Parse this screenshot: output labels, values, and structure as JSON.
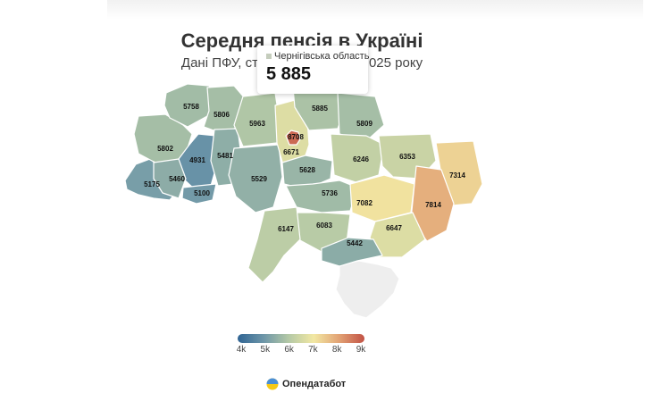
{
  "header": {
    "title": "Середня пенсія в Україні",
    "subtitle": "Дані ПФУ, ст",
    "subtitle_tail": "025 року"
  },
  "tooltip": {
    "region": "Чернігівська область",
    "value": "5 885"
  },
  "colors": {
    "scale": [
      "#2f6493",
      "#6c95a8",
      "#b3c8a6",
      "#f2e8a3",
      "#e2a274",
      "#c25245"
    ],
    "no_data": "#eeeeee"
  },
  "legend": {
    "ticks": [
      "4k",
      "5k",
      "6k",
      "7k",
      "8k",
      "9k"
    ],
    "min": 4000,
    "max": 9000
  },
  "regions": [
    {
      "id": "volyn",
      "value": "5758"
    },
    {
      "id": "rivne",
      "value": "5806"
    },
    {
      "id": "zhytomyr",
      "value": "5963"
    },
    {
      "id": "kyiv-oblast",
      "value": "6671"
    },
    {
      "id": "kyiv-city",
      "value": "8708"
    },
    {
      "id": "chernihiv",
      "value": "5885"
    },
    {
      "id": "sumy",
      "value": "5809"
    },
    {
      "id": "lviv",
      "value": "5802"
    },
    {
      "id": "ternopil",
      "value": "4931"
    },
    {
      "id": "khmelnytskyi",
      "value": "5481"
    },
    {
      "id": "vinnytsia",
      "value": "5529"
    },
    {
      "id": "cherkasy",
      "value": "5628"
    },
    {
      "id": "poltava",
      "value": "6246"
    },
    {
      "id": "kharkiv",
      "value": "6353"
    },
    {
      "id": "luhansk",
      "value": "7314"
    },
    {
      "id": "zakarpattia",
      "value": "5175"
    },
    {
      "id": "ivano-frankivsk",
      "value": "5460"
    },
    {
      "id": "chernivtsi",
      "value": "5100"
    },
    {
      "id": "kirovohrad",
      "value": "5736"
    },
    {
      "id": "dnipro",
      "value": "7082"
    },
    {
      "id": "donetsk",
      "value": "7814"
    },
    {
      "id": "odesa",
      "value": "6147"
    },
    {
      "id": "mykolaiv",
      "value": "6083"
    },
    {
      "id": "zaporizhzhia",
      "value": "6647"
    },
    {
      "id": "kherson",
      "value": "5442"
    },
    {
      "id": "crimea",
      "value": ""
    }
  ],
  "brand": {
    "name": "Опендатабот"
  }
}
